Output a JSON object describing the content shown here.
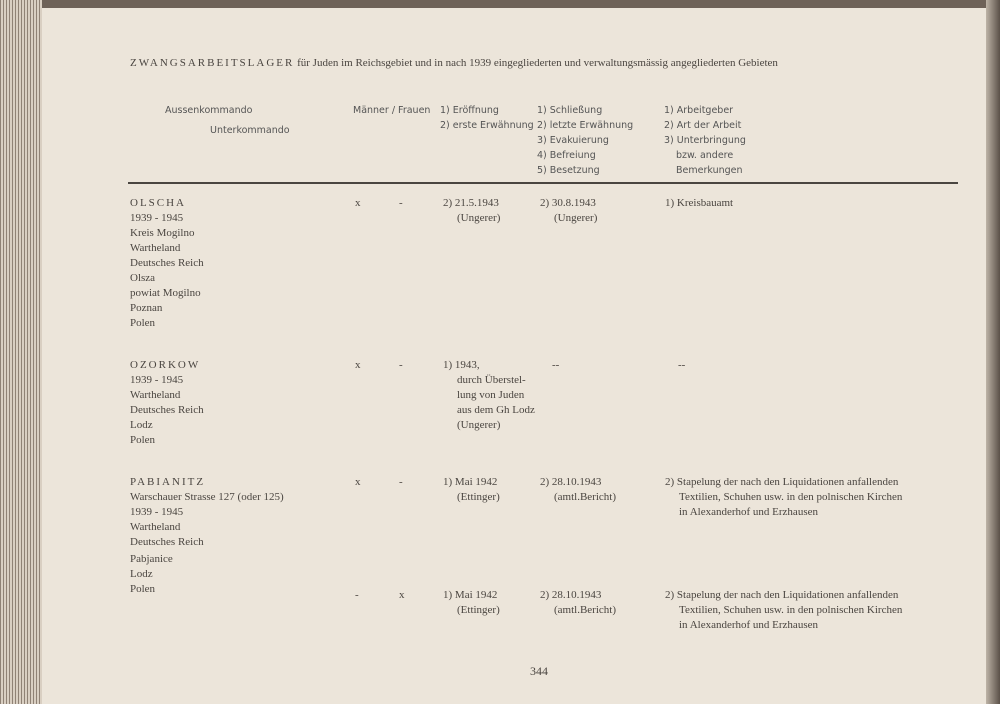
{
  "title": {
    "spaced": "ZWANGSARBEITSLAGER",
    "rest": "für Juden im Reichsgebiet und in nach 1939 eingegliederten und verwaltungsmässig angegliederten Gebieten"
  },
  "header": {
    "aussenkommando": "Aussenkommando",
    "unterkommando": "Unterkommando",
    "maenner_frauen": "Männer / Frauen",
    "col_open": [
      "1) Eröffnung",
      "2) erste Erwähnung"
    ],
    "col_close": [
      "1) Schließung",
      "2) letzte Erwähnung",
      "3) Evakuierung",
      "4) Befreiung",
      "5) Besetzung"
    ],
    "col_notes": [
      "1) Arbeitgeber",
      "2) Art der Arbeit",
      "3) Unterbringung",
      "bzw. andere",
      "Bemerkungen"
    ]
  },
  "entries": [
    {
      "name": "OLSCHA",
      "location": [
        "1939 - 1945",
        "Kreis Mogilno",
        "Wartheland",
        "Deutsches Reich"
      ],
      "location_now": [
        "Olsza",
        "powiat Mogilno",
        "Poznan",
        "Polen"
      ],
      "rows": [
        {
          "men": "x",
          "women": "-",
          "open": [
            "2) 21.5.1943",
            "(Ungerer)"
          ],
          "close": [
            "2) 30.8.1943",
            "(Ungerer)"
          ],
          "notes": [
            "1) Kreisbauamt"
          ]
        }
      ]
    },
    {
      "name": "OZORKOW",
      "location": [
        "1939 - 1945",
        "Wartheland",
        "Deutsches Reich"
      ],
      "location_now": [
        "Lodz",
        "Polen"
      ],
      "rows": [
        {
          "men": "x",
          "women": "-",
          "open": [
            "1) 1943,",
            "durch Überstel-",
            "lung von Juden",
            "aus dem Gh Lodz",
            "(Ungerer)"
          ],
          "close": [
            "--"
          ],
          "notes": [
            "--"
          ]
        }
      ]
    },
    {
      "name": "PABIANITZ",
      "location": [
        "Warschauer Strasse 127 (oder 125)",
        "1939 - 1945",
        "Wartheland",
        "Deutsches Reich"
      ],
      "location_now": [
        "Pabjanice",
        "Lodz",
        "Polen"
      ],
      "rows": [
        {
          "men": "x",
          "women": "-",
          "open": [
            "1) Mai 1942",
            "(Ettinger)"
          ],
          "close": [
            "2) 28.10.1943",
            "(amtl.Bericht)"
          ],
          "notes": [
            "2) Stapelung der nach den Liquidationen anfallenden",
            "Textilien, Schuhen usw. in den polnischen Kirchen",
            "in Alexanderhof und Erzhausen"
          ]
        },
        {
          "men": "-",
          "women": "x",
          "open": [
            "1) Mai 1942",
            "(Ettinger)"
          ],
          "close": [
            "2) 28.10.1943",
            "(amtl.Bericht)"
          ],
          "notes": [
            "2) Stapelung der nach den Liquidationen anfallenden",
            "Textilien, Schuhen usw. in den polnischen Kirchen",
            "in Alexanderhof und Erzhausen"
          ]
        }
      ]
    }
  ],
  "page_number": "344"
}
